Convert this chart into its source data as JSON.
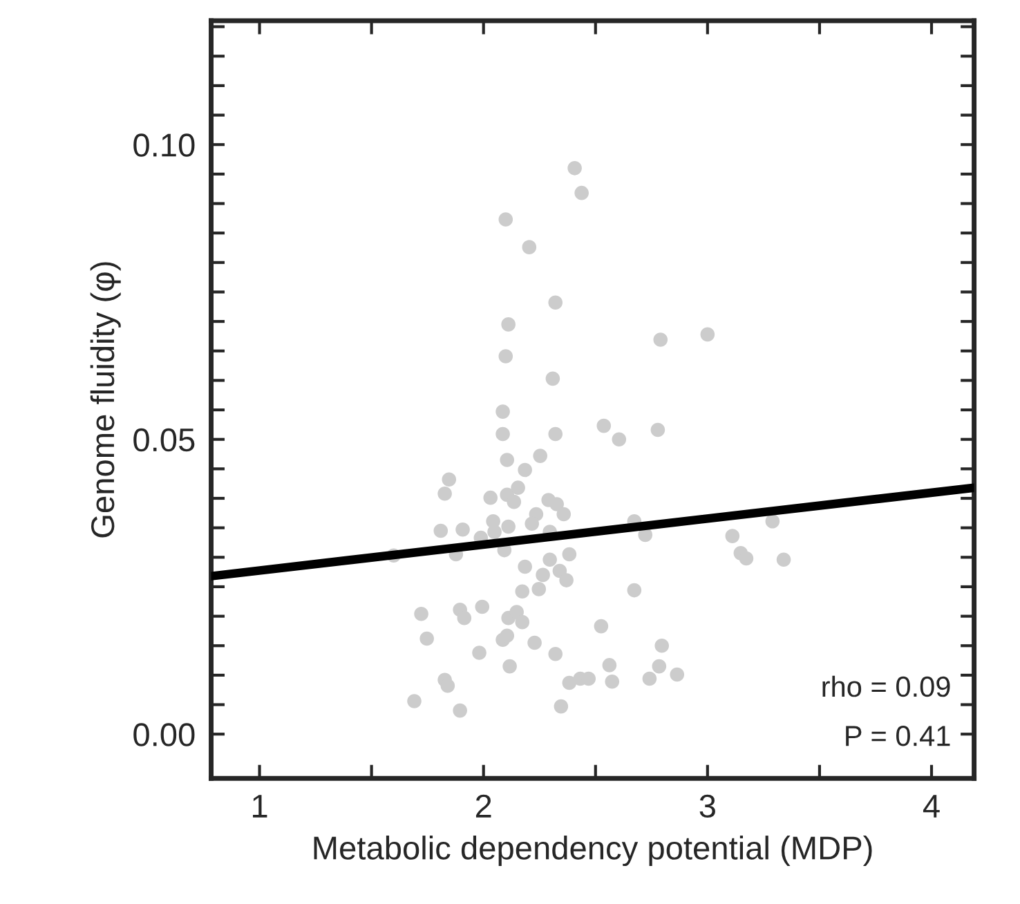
{
  "chart_data": {
    "type": "scatter",
    "xlabel": "Metabolic dependency potential (MDP)",
    "ylabel": "Genome fluidity (φ)",
    "xlim": [
      0.784,
      4.19
    ],
    "ylim": [
      -0.0075,
      0.121
    ],
    "xticks": [
      1,
      {
        "value": 1.5,
        "label": null
      },
      2,
      {
        "value": 2.5,
        "label": null
      },
      3,
      {
        "value": 3.5,
        "label": null
      },
      4
    ],
    "yticks": [
      {
        "value": 0.0,
        "label": "0.00"
      },
      {
        "value": 0.005,
        "label": null
      },
      {
        "value": 0.01,
        "label": null
      },
      {
        "value": 0.015,
        "label": null
      },
      {
        "value": 0.02,
        "label": null
      },
      {
        "value": 0.025,
        "label": null
      },
      {
        "value": 0.03,
        "label": null
      },
      {
        "value": 0.035,
        "label": null
      },
      {
        "value": 0.04,
        "label": null
      },
      {
        "value": 0.045,
        "label": null
      },
      {
        "value": 0.05,
        "label": "0.05"
      },
      {
        "value": 0.055,
        "label": null
      },
      {
        "value": 0.06,
        "label": null
      },
      {
        "value": 0.065,
        "label": null
      },
      {
        "value": 0.07,
        "label": null
      },
      {
        "value": 0.075,
        "label": null
      },
      {
        "value": 0.08,
        "label": null
      },
      {
        "value": 0.085,
        "label": null
      },
      {
        "value": 0.09,
        "label": null
      },
      {
        "value": 0.095,
        "label": null
      },
      {
        "value": 0.1,
        "label": "0.10"
      },
      {
        "value": 0.105,
        "label": null
      },
      {
        "value": 0.11,
        "label": null
      },
      {
        "value": 0.115,
        "label": null
      },
      {
        "value": 0.12,
        "label": null
      }
    ],
    "grid": false,
    "legend": false,
    "marker": "circle",
    "annotations": [
      "rho = 0.09",
      "P = 0.41"
    ],
    "series": [
      {
        "color": "#cccccc",
        "x": [
          2.407,
          2.438,
          2.099,
          2.204,
          2.321,
          2.111,
          2.099,
          2.309,
          2.086,
          2.086,
          2.321,
          2.537,
          2.605,
          2.79,
          3.0,
          2.778,
          2.105,
          2.253,
          2.185,
          1.846,
          1.827,
          2.031,
          2.105,
          2.154,
          2.136,
          2.29,
          2.327,
          2.358,
          2.235,
          2.216,
          2.043,
          2.111,
          1.809,
          1.907,
          2.049,
          1.988,
          2.296,
          1.599,
          1.877,
          2.093,
          2.383,
          2.185,
          2.296,
          2.265,
          2.34,
          2.37,
          2.247,
          2.173,
          1.722,
          1.895,
          1.914,
          1.994,
          2.111,
          2.148,
          2.173,
          1.747,
          2.086,
          2.105,
          2.228,
          1.981,
          2.321,
          2.525,
          2.117,
          2.562,
          2.574,
          1.827,
          1.84,
          2.383,
          2.432,
          2.469,
          1.691,
          1.895,
          2.346,
          2.673,
          2.722,
          3.111,
          3.148,
          3.173,
          3.34,
          3.29,
          2.673,
          2.796,
          2.784,
          2.864,
          2.741
        ],
        "values": [
          0.096,
          0.0918,
          0.0873,
          0.0826,
          0.0732,
          0.0695,
          0.0641,
          0.0603,
          0.0547,
          0.0509,
          0.0509,
          0.0523,
          0.05,
          0.0669,
          0.0678,
          0.0516,
          0.0465,
          0.0472,
          0.0448,
          0.0432,
          0.0408,
          0.0401,
          0.0406,
          0.0418,
          0.0394,
          0.0397,
          0.039,
          0.0373,
          0.0373,
          0.0357,
          0.0361,
          0.0352,
          0.0345,
          0.0347,
          0.0343,
          0.0333,
          0.0343,
          0.0303,
          0.0305,
          0.0312,
          0.0305,
          0.0284,
          0.0296,
          0.027,
          0.0277,
          0.0261,
          0.0246,
          0.0242,
          0.0204,
          0.0211,
          0.0197,
          0.0216,
          0.0197,
          0.0207,
          0.019,
          0.0162,
          0.016,
          0.0167,
          0.0155,
          0.0138,
          0.0136,
          0.0183,
          0.0115,
          0.0117,
          0.0089,
          0.0092,
          0.0082,
          0.0087,
          0.0094,
          0.0094,
          0.0056,
          0.004,
          0.0047,
          0.0361,
          0.0338,
          0.0336,
          0.0307,
          0.0298,
          0.0296,
          0.0361,
          0.0244,
          0.015,
          0.0115,
          0.0101,
          0.0094
        ]
      },
      {
        "type": "line",
        "color": "#000000",
        "marker": "none",
        "line_style": "solid",
        "x": [
          0.784,
          4.19
        ],
        "values": [
          0.0268,
          0.0418
        ]
      }
    ]
  }
}
